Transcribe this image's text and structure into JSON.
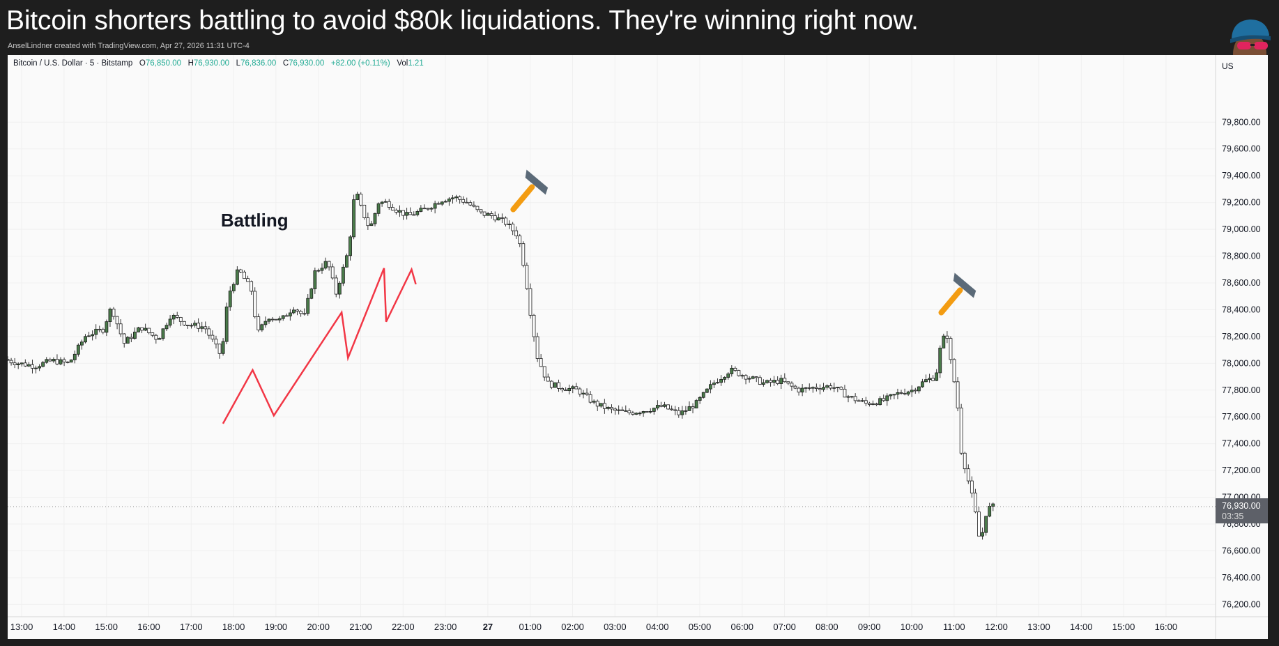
{
  "header": {
    "title": "Bitcoin shorters battling to avoid $80k liquidations. They're winning right now.",
    "subtitle": "AnselLindner created with TradingView.com, Apr 27, 2026 11:31 UTC-4"
  },
  "legend": {
    "symbol": "Bitcoin / U.S. Dollar · 5 · Bitstamp",
    "o_label": "O",
    "o_value": "76,850.00",
    "h_label": "H",
    "h_value": "76,930.00",
    "l_label": "L",
    "l_value": "76,836.00",
    "c_label": "C",
    "c_value": "76,930.00",
    "change": "+82.00 (+0.11%)",
    "vol_label": "Vol",
    "vol_value": "1.21"
  },
  "colors": {
    "candle_up": "#4a7b4a",
    "candle_down": "#1b1b1b",
    "annotation_line": "#f23645",
    "price_label_bg": "#5d6068",
    "hammer_handle": "#f39c12",
    "hammer_head": "#5b6a78"
  },
  "chart_data": {
    "type": "candlestick",
    "title": "Bitcoin / U.S. Dollar · 5 · Bitstamp",
    "ylim": [
      76150,
      80150
    ],
    "y_ticks": [
      {
        "value": 79800,
        "label": "79,800.00"
      },
      {
        "value": 79600,
        "label": "79,600.00"
      },
      {
        "value": 79400,
        "label": "79,400.00"
      },
      {
        "value": 79200,
        "label": "79,200.00"
      },
      {
        "value": 79000,
        "label": "79,000.00"
      },
      {
        "value": 78800,
        "label": "78,800.00"
      },
      {
        "value": 78600,
        "label": "78,600.00"
      },
      {
        "value": 78400,
        "label": "78,400.00"
      },
      {
        "value": 78200,
        "label": "78,200.00"
      },
      {
        "value": 78000,
        "label": "78,000.00"
      },
      {
        "value": 77800,
        "label": "77,800.00"
      },
      {
        "value": 77600,
        "label": "77,600.00"
      },
      {
        "value": 77400,
        "label": "77,400.00"
      },
      {
        "value": 77200,
        "label": "77,200.00"
      },
      {
        "value": 77000,
        "label": "77,000.00"
      },
      {
        "value": 76800,
        "label": "76,800.00"
      },
      {
        "value": 76600,
        "label": "76,600.00"
      },
      {
        "value": 76400,
        "label": "76,400.00"
      },
      {
        "value": 76200,
        "label": "76,200.00"
      }
    ],
    "x_ticks": [
      "13:00",
      "14:00",
      "15:00",
      "16:00",
      "17:00",
      "18:00",
      "19:00",
      "20:00",
      "21:00",
      "22:00",
      "23:00",
      "27",
      "01:00",
      "02:00",
      "03:00",
      "04:00",
      "05:00",
      "06:00",
      "07:00",
      "08:00",
      "09:00",
      "10:00",
      "11:00",
      "12:00",
      "13:00",
      "14:00",
      "15:00",
      "16:00"
    ],
    "x_range_hours": [
      12.67,
      41.17
    ],
    "currency_label": "US",
    "last_price": {
      "value": 76930,
      "label": "76,930.00",
      "countdown": "03:35"
    },
    "price_path": [
      [
        12.67,
        78030
      ],
      [
        13.0,
        78000
      ],
      [
        13.4,
        77980
      ],
      [
        13.8,
        78020
      ],
      [
        14.2,
        78000
      ],
      [
        14.6,
        78210
      ],
      [
        15.0,
        78250
      ],
      [
        15.2,
        78420
      ],
      [
        15.5,
        78150
      ],
      [
        15.9,
        78270
      ],
      [
        16.3,
        78180
      ],
      [
        16.6,
        78360
      ],
      [
        17.0,
        78290
      ],
      [
        17.4,
        78270
      ],
      [
        17.8,
        78050
      ],
      [
        17.95,
        78500
      ],
      [
        18.2,
        78700
      ],
      [
        18.5,
        78550
      ],
      [
        18.65,
        78220
      ],
      [
        18.9,
        78350
      ],
      [
        19.2,
        78320
      ],
      [
        19.5,
        78420
      ],
      [
        19.75,
        78350
      ],
      [
        20.0,
        78680
      ],
      [
        20.3,
        78760
      ],
      [
        20.5,
        78520
      ],
      [
        20.8,
        78850
      ],
      [
        20.95,
        79300
      ],
      [
        21.1,
        79150
      ],
      [
        21.3,
        79000
      ],
      [
        21.5,
        79200
      ],
      [
        21.7,
        79200
      ],
      [
        21.9,
        79150
      ],
      [
        22.2,
        79100
      ],
      [
        22.6,
        79150
      ],
      [
        23.0,
        79220
      ],
      [
        23.3,
        79240
      ],
      [
        23.6,
        79200
      ],
      [
        23.9,
        79120
      ],
      [
        24.2,
        79100
      ],
      [
        24.5,
        79050
      ],
      [
        24.8,
        78950
      ],
      [
        24.95,
        78700
      ],
      [
        25.1,
        78350
      ],
      [
        25.25,
        78050
      ],
      [
        25.5,
        77850
      ],
      [
        25.8,
        77820
      ],
      [
        26.2,
        77800
      ],
      [
        26.6,
        77700
      ],
      [
        27.0,
        77650
      ],
      [
        27.4,
        77630
      ],
      [
        27.8,
        77650
      ],
      [
        28.2,
        77680
      ],
      [
        28.6,
        77620
      ],
      [
        29.0,
        77700
      ],
      [
        29.4,
        77850
      ],
      [
        29.8,
        77950
      ],
      [
        30.2,
        77900
      ],
      [
        30.6,
        77850
      ],
      [
        31.0,
        77870
      ],
      [
        31.4,
        77800
      ],
      [
        31.8,
        77820
      ],
      [
        32.2,
        77830
      ],
      [
        32.6,
        77750
      ],
      [
        33.0,
        77700
      ],
      [
        33.4,
        77720
      ],
      [
        33.8,
        77780
      ],
      [
        34.1,
        77800
      ],
      [
        34.4,
        77870
      ],
      [
        34.65,
        77900
      ],
      [
        34.75,
        78100
      ],
      [
        34.9,
        78250
      ],
      [
        35.0,
        78020
      ],
      [
        35.15,
        77750
      ],
      [
        35.25,
        77350
      ],
      [
        35.4,
        77150
      ],
      [
        35.55,
        76950
      ],
      [
        35.7,
        76650
      ],
      [
        35.85,
        76900
      ],
      [
        35.95,
        76930
      ]
    ],
    "annotations": [
      {
        "type": "text",
        "text": "Battling"
      },
      {
        "type": "polyline",
        "color": "#f23645",
        "points": [
          [
            17.75,
            77550
          ],
          [
            18.45,
            77950
          ],
          [
            18.95,
            77610
          ],
          [
            20.55,
            78380
          ],
          [
            20.7,
            78040
          ],
          [
            21.55,
            78710
          ],
          [
            21.6,
            78310
          ],
          [
            22.2,
            78700
          ],
          [
            22.3,
            78590
          ]
        ]
      },
      {
        "type": "icon",
        "name": "hammer-icon",
        "x": 25.0,
        "y": 79300
      },
      {
        "type": "icon",
        "name": "hammer-icon",
        "x": 35.1,
        "y": 78530
      }
    ]
  }
}
